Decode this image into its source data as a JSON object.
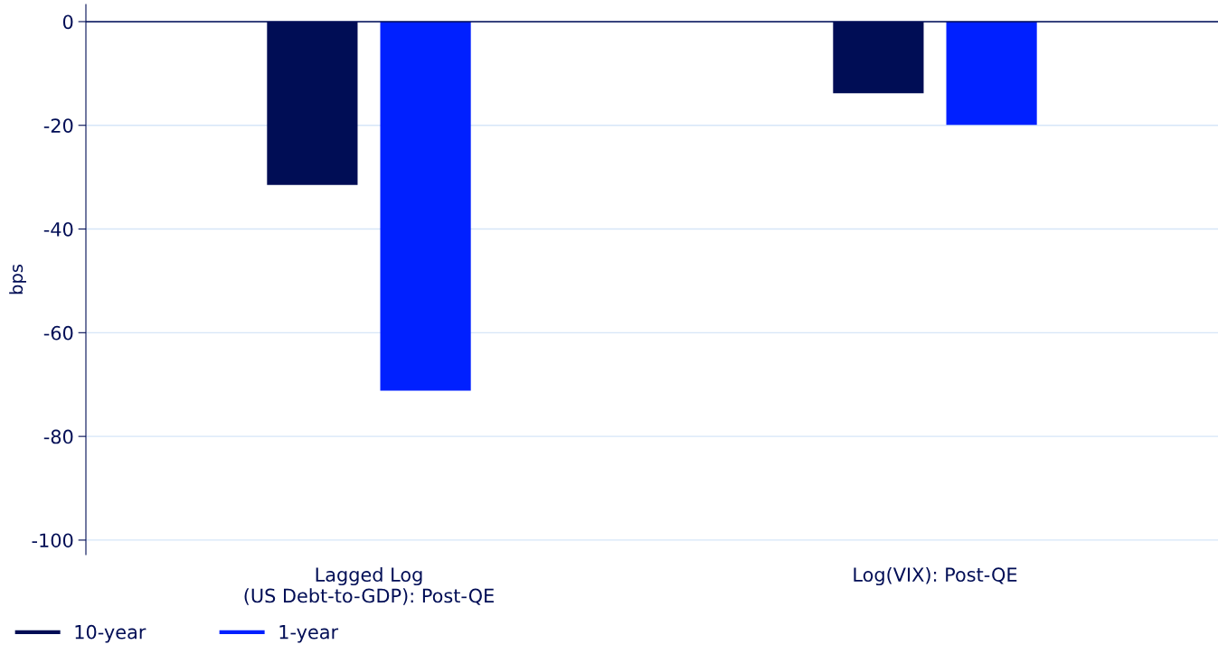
{
  "chart_data": {
    "type": "bar",
    "ylabel": "bps",
    "categories": [
      "Lagged Log\n(US Debt-to-GDP): Post-QE",
      "Log(VIX): Post-QE"
    ],
    "series": [
      {
        "name": "10-year",
        "color": "#000d55",
        "values": [
          -31.5,
          -13.8
        ]
      },
      {
        "name": "1-year",
        "color": "#0020ff",
        "values": [
          -71.2,
          -19.9
        ]
      }
    ],
    "ylim": [
      -102.8,
      3.3
    ],
    "yticks": [
      {
        "value": 0,
        "label": "0"
      },
      {
        "value": -20,
        "label": "-20"
      },
      {
        "value": -40,
        "label": "-40"
      },
      {
        "value": -60,
        "label": "-60"
      },
      {
        "value": -80,
        "label": "-80"
      },
      {
        "value": -100,
        "label": "-100"
      }
    ],
    "grid": "y",
    "legend": "bottom left",
    "ref_lines": [
      {
        "axis": "y",
        "value": 0,
        "color": "#000d55"
      }
    ]
  }
}
